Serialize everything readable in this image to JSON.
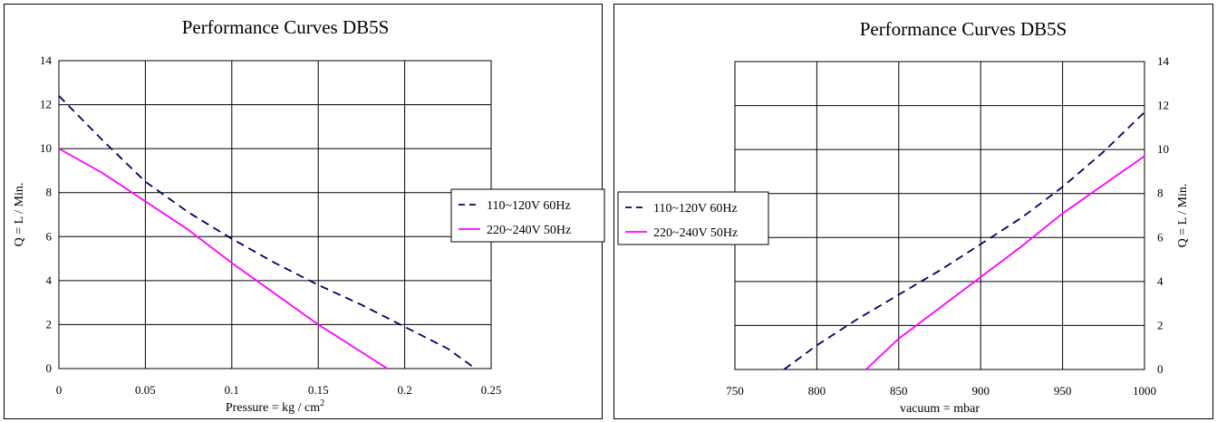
{
  "chart_data": [
    {
      "type": "line",
      "title": "Performance Curves DB5S",
      "xlabel": "Pressure = kg / cm",
      "xlabel_superscript": "2",
      "ylabel": "Q = L / Min.",
      "xlim": [
        0,
        0.25
      ],
      "ylim": [
        0,
        14
      ],
      "x_ticks": [
        "0",
        "0.05",
        "0.1",
        "0.15",
        "0.2",
        "0.25"
      ],
      "y_ticks": [
        "0",
        "2",
        "4",
        "6",
        "8",
        "10",
        "12",
        "14"
      ],
      "grid": true,
      "legend_position": "right",
      "series": [
        {
          "name": "110~120V 60Hz",
          "color": "#000066",
          "style": "dashed",
          "x": [
            0,
            0.025,
            0.05,
            0.075,
            0.1,
            0.125,
            0.15,
            0.175,
            0.2,
            0.225,
            0.24
          ],
          "y": [
            12.4,
            10.4,
            8.5,
            7.1,
            5.9,
            4.8,
            3.8,
            2.9,
            1.9,
            0.9,
            0.05
          ]
        },
        {
          "name": "220~240V 50Hz",
          "color": "#ff00ff",
          "style": "solid",
          "x": [
            0,
            0.025,
            0.05,
            0.075,
            0.1,
            0.125,
            0.15,
            0.17,
            0.19
          ],
          "y": [
            10,
            8.9,
            7.6,
            6.3,
            4.8,
            3.4,
            2.0,
            1.0,
            0
          ]
        }
      ]
    },
    {
      "type": "line",
      "title": "Performance Curves DB5S",
      "xlabel": "vacuum = mbar",
      "ylabel": "Q = L / Min.",
      "xlim": [
        750,
        1000
      ],
      "ylim": [
        0,
        14
      ],
      "x_ticks": [
        "750",
        "800",
        "850",
        "900",
        "950",
        "1000"
      ],
      "y_ticks": [
        "0",
        "2",
        "4",
        "6",
        "8",
        "10",
        "12",
        "14"
      ],
      "grid": true,
      "y_axis_side": "right",
      "legend_position": "left",
      "series": [
        {
          "name": "110~120V 60Hz",
          "color": "#000066",
          "style": "dashed",
          "x": [
            780,
            800,
            825,
            850,
            875,
            900,
            925,
            950,
            975,
            1000
          ],
          "y": [
            0,
            1.1,
            2.3,
            3.4,
            4.5,
            5.7,
            6.9,
            8.3,
            9.9,
            11.7
          ]
        },
        {
          "name": "220~240V 50Hz",
          "color": "#ff00ff",
          "style": "solid",
          "x": [
            830,
            850,
            875,
            900,
            925,
            950,
            975,
            1000
          ],
          "y": [
            0,
            1.4,
            2.8,
            4.2,
            5.6,
            7.1,
            8.4,
            9.7
          ]
        }
      ]
    }
  ]
}
